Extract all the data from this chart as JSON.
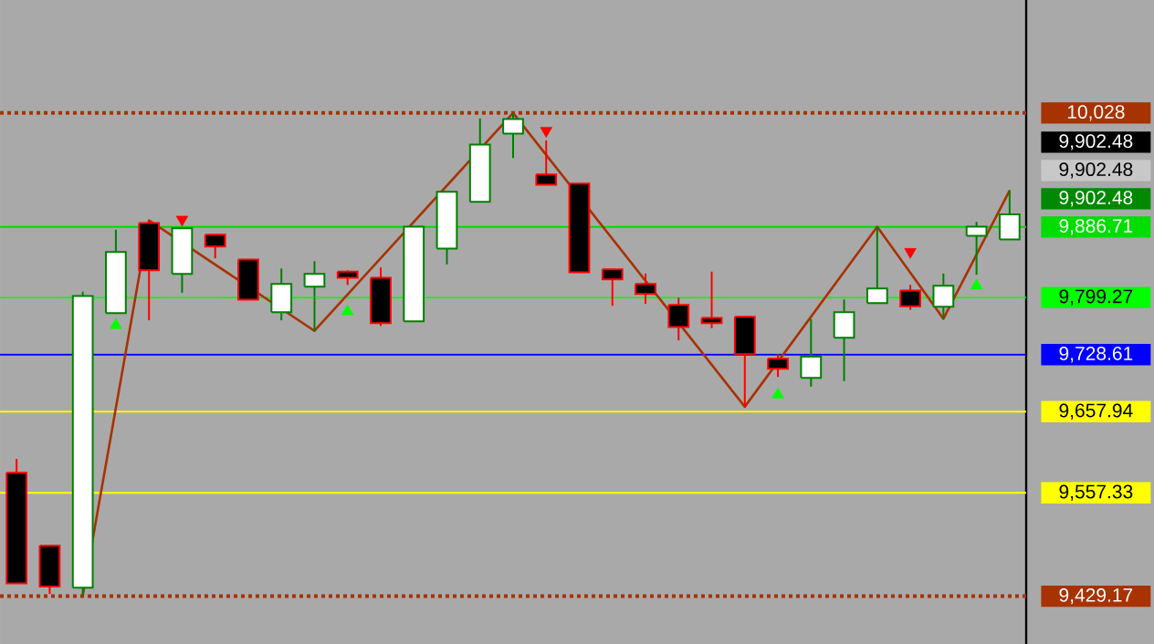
{
  "chart_data": {
    "type": "candlestick",
    "categories": [
      null,
      null,
      null,
      null,
      null,
      null,
      null,
      null,
      null,
      null,
      null,
      null,
      null,
      null,
      null,
      null,
      null,
      null,
      null,
      null,
      null,
      null,
      null,
      null,
      null,
      null,
      null,
      null,
      null,
      null,
      null
    ],
    "ohlc": [
      [
        9582.1,
        9599.3,
        9445.0,
        9445.0
      ],
      [
        9491.8,
        9491.8,
        9432.0,
        9441.2
      ],
      [
        9439.8,
        9806.5,
        9430.0,
        9801.3
      ],
      [
        9780.1,
        9883.4,
        9780.1,
        9855.6
      ],
      [
        9891.7,
        9894.7,
        9771.1,
        9833.0
      ],
      [
        9828.5,
        9886.0,
        9805.0,
        9885.0
      ],
      [
        9877.3,
        9877.3,
        9847.9,
        9862.4
      ],
      [
        9846.5,
        9846.5,
        9796.8,
        9796.8
      ],
      [
        9781.0,
        9835.2,
        9771.1,
        9816.3
      ],
      [
        9812.7,
        9844.3,
        9757.5,
        9828.5
      ],
      [
        9831.4,
        9833.0,
        9815.0,
        9823.9
      ],
      [
        9823.9,
        9836.6,
        9764.0,
        9767.5
      ],
      [
        9769.7,
        9887.2,
        9769.7,
        9887.2
      ],
      [
        9860.1,
        9930.2,
        9840.4,
        9930.2
      ],
      [
        9918.0,
        10021.2,
        9918.0,
        9988.9
      ],
      [
        10002.5,
        10028,
        9972.2,
        10020.5
      ],
      [
        9951.8,
        9994.0,
        9939.2,
        9939.2
      ],
      [
        9940.5,
        9940.5,
        9830.7,
        9830.7
      ],
      [
        9834.3,
        9834.3,
        9789.1,
        9821.7
      ],
      [
        9816.3,
        9829.0,
        9791.4,
        9803.6
      ],
      [
        9790.1,
        9799.1,
        9746.2,
        9762.9
      ],
      [
        9774.2,
        9831.4,
        9761.4,
        9767.5
      ],
      [
        9775.6,
        9775.6,
        9663.5,
        9729.0
      ],
      [
        9723.6,
        9729.0,
        9701.0,
        9711.0
      ],
      [
        9699.7,
        9772.7,
        9689.0,
        9725.9
      ],
      [
        9749.4,
        9796.8,
        9695.8,
        9781.0
      ],
      [
        9792.3,
        9886.71,
        9792.3,
        9810.4
      ],
      [
        9808.1,
        9815.0,
        9784.0,
        9788.5
      ],
      [
        9787.8,
        9829.1,
        9772.7,
        9814.0
      ],
      [
        9875.9,
        9893.1,
        9827.6,
        9887.2
      ],
      [
        9871.4,
        9932.4,
        9871.4,
        9902.48
      ]
    ],
    "ylim": [
      9370,
      10168
    ],
    "yticks": [
      {
        "value": 10028,
        "label": "10,028"
      },
      {
        "value": 9886.71,
        "label": "9,886.71"
      },
      {
        "value": 9799.27,
        "label": "9,799.27"
      },
      {
        "value": 9728.61,
        "label": "9,728.61"
      },
      {
        "value": 9657.94,
        "label": "9,657.94"
      },
      {
        "value": 9557.33,
        "label": "9,557.33"
      },
      {
        "value": 9429.17,
        "label": "9,429.17"
      }
    ],
    "tick_labels": "y",
    "annotations": [
      "9,902.48",
      "9,902.48",
      "9,902.48"
    ],
    "series": [
      {
        "type": "line",
        "color": "#a83200",
        "marker": "none",
        "values": [
          null,
          null,
          9430,
          null,
          9895,
          null,
          null,
          null,
          null,
          9758,
          null,
          null,
          null,
          null,
          null,
          10028,
          null,
          null,
          null,
          null,
          null,
          null,
          9664,
          null,
          null,
          null,
          9887,
          null,
          9773,
          null,
          9932
        ]
      },
      {
        "type": "scatter",
        "color": "#ff0000",
        "marker": "triangle",
        "values": [
          null,
          null,
          null,
          null,
          null,
          9896,
          null,
          null,
          null,
          null,
          null,
          null,
          null,
          null,
          null,
          null,
          10006,
          null,
          null,
          null,
          null,
          null,
          null,
          null,
          null,
          null,
          null,
          9856,
          null,
          null,
          null
        ]
      },
      {
        "type": "scatter",
        "color": "#00ff00",
        "marker": "triangle",
        "values": [
          null,
          null,
          null,
          9765,
          null,
          null,
          null,
          null,
          null,
          null,
          9782,
          null,
          null,
          null,
          null,
          null,
          null,
          null,
          null,
          null,
          null,
          null,
          null,
          9679,
          null,
          null,
          null,
          null,
          null,
          9814,
          null
        ]
      }
    ],
    "ref_lines": [
      {
        "axis": "y",
        "value": 10028,
        "color": "#a83200",
        "line_style": "dotted"
      },
      {
        "axis": "y",
        "value": 9886.71,
        "color": "#00dd00",
        "line_style": "solid"
      },
      {
        "axis": "y",
        "value": 9799.27,
        "color": "#00ff00",
        "line_style": "solid"
      },
      {
        "axis": "y",
        "value": 9728.61,
        "color": "#0000ff",
        "line_style": "solid"
      },
      {
        "axis": "y",
        "value": 9657.94,
        "color": "#ffff00",
        "line_style": "solid"
      },
      {
        "axis": "y",
        "value": 9557.33,
        "color": "#ffff00",
        "line_style": "solid"
      },
      {
        "axis": "y",
        "value": 9429.17,
        "color": "#a83200",
        "line_style": "dotted"
      }
    ]
  }
}
